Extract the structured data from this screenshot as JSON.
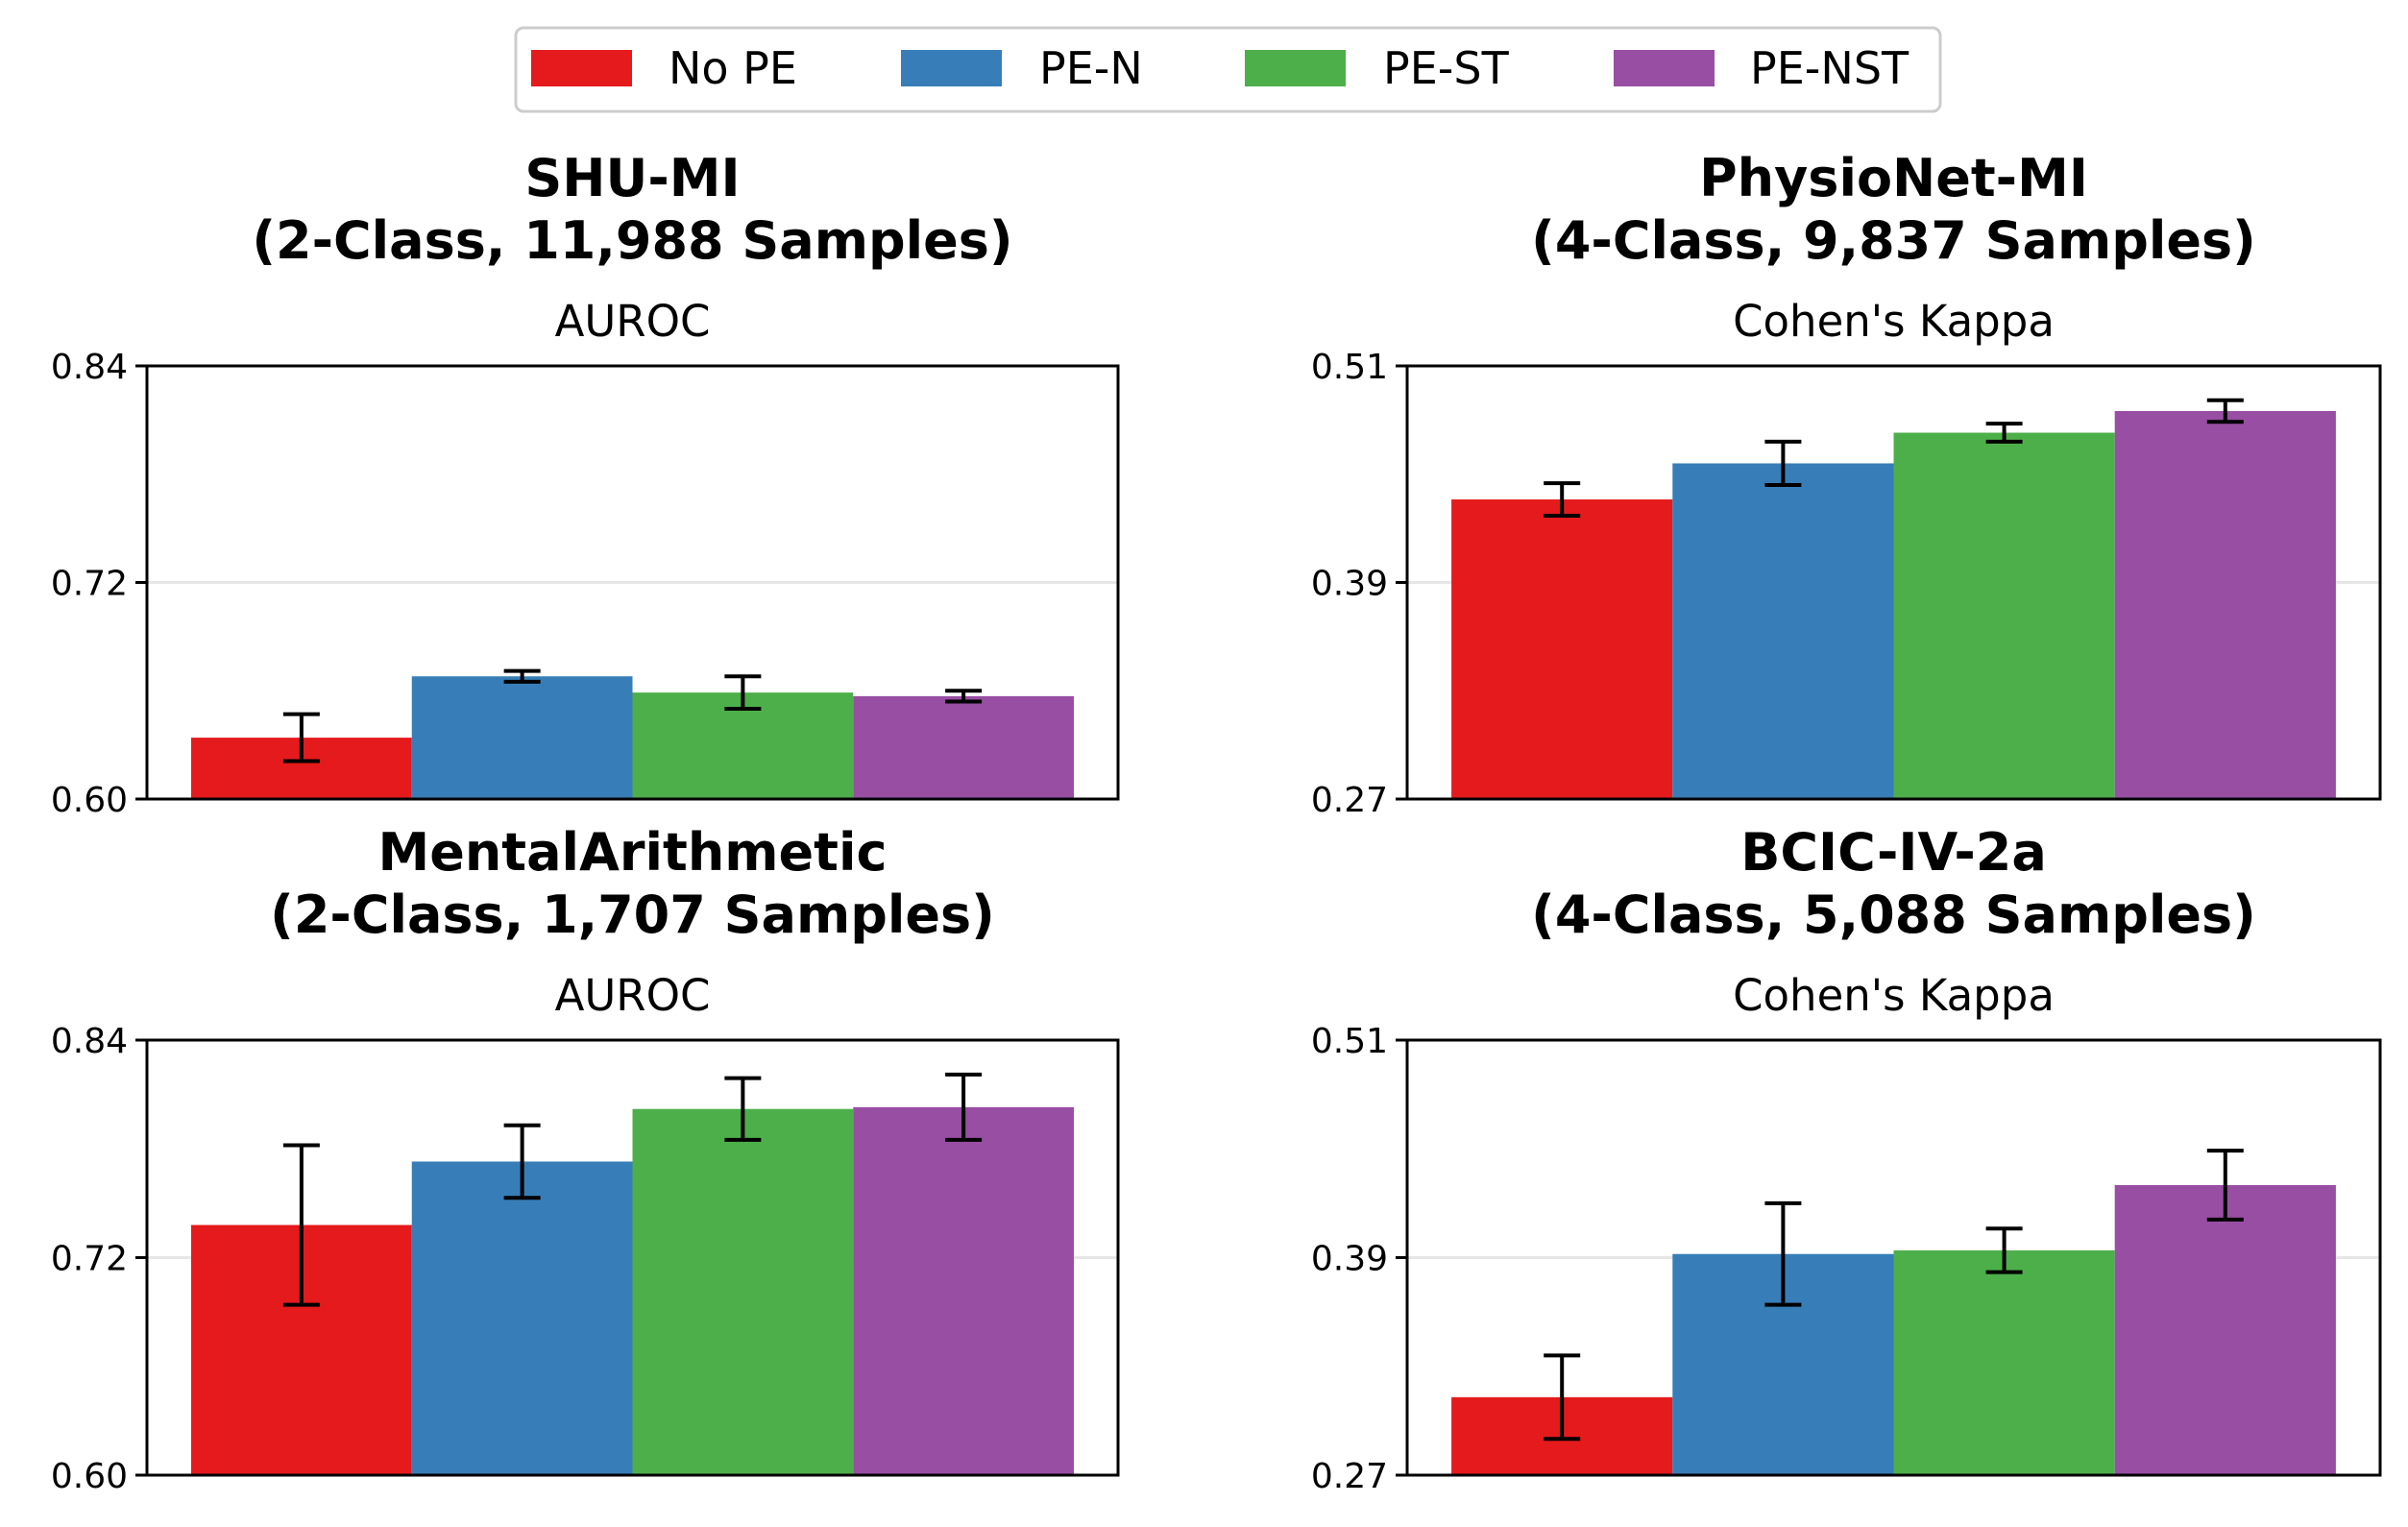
{
  "legend": [
    {
      "label": "No PE",
      "color": "#e41a1c"
    },
    {
      "label": "PE-N",
      "color": "#377eb8"
    },
    {
      "label": "PE-ST",
      "color": "#4daf4a"
    },
    {
      "label": "PE-NST",
      "color": "#984ea3"
    }
  ],
  "chart_data": [
    {
      "type": "bar",
      "title": "SHU-MI",
      "subtitle": "(2-Class, 11,988 Samples)",
      "ylabel": "AUROC",
      "ylim": [
        0.6,
        0.84
      ],
      "yticks": [
        "0.84",
        "0.72",
        "0.60"
      ],
      "ytick_values": [
        0.84,
        0.72,
        0.6
      ],
      "grid": true,
      "series": [
        {
          "name": "No PE",
          "value": 0.634,
          "error": 0.013
        },
        {
          "name": "PE-N",
          "value": 0.668,
          "error": 0.003
        },
        {
          "name": "PE-ST",
          "value": 0.659,
          "error": 0.009
        },
        {
          "name": "PE-NST",
          "value": 0.657,
          "error": 0.003
        }
      ]
    },
    {
      "type": "bar",
      "title": "PhysioNet-MI",
      "subtitle": "(4-Class, 9,837 Samples)",
      "ylabel": "Cohen's Kappa",
      "ylim": [
        0.27,
        0.51
      ],
      "yticks": [
        "0.51",
        "0.39",
        "0.27"
      ],
      "ytick_values": [
        0.51,
        0.39,
        0.27
      ],
      "grid": true,
      "series": [
        {
          "name": "No PE",
          "value": 0.436,
          "error": 0.009
        },
        {
          "name": "PE-N",
          "value": 0.456,
          "error": 0.012
        },
        {
          "name": "PE-ST",
          "value": 0.473,
          "error": 0.005
        },
        {
          "name": "PE-NST",
          "value": 0.485,
          "error": 0.006
        }
      ]
    },
    {
      "type": "bar",
      "title": "MentalArithmetic",
      "subtitle": "(2-Class, 1,707 Samples)",
      "ylabel": "AUROC",
      "ylim": [
        0.6,
        0.84
      ],
      "yticks": [
        "0.84",
        "0.72",
        "0.60"
      ],
      "ytick_values": [
        0.84,
        0.72,
        0.6
      ],
      "grid": true,
      "series": [
        {
          "name": "No PE",
          "value": 0.738,
          "error": 0.044
        },
        {
          "name": "PE-N",
          "value": 0.773,
          "error": 0.02
        },
        {
          "name": "PE-ST",
          "value": 0.802,
          "error": 0.017
        },
        {
          "name": "PE-NST",
          "value": 0.803,
          "error": 0.018
        }
      ]
    },
    {
      "type": "bar",
      "title": "BCIC-IV-2a",
      "subtitle": "(4-Class, 5,088 Samples)",
      "ylabel": "Cohen's Kappa",
      "ylim": [
        0.27,
        0.51
      ],
      "yticks": [
        "0.51",
        "0.39",
        "0.27"
      ],
      "ytick_values": [
        0.51,
        0.39,
        0.27
      ],
      "grid": true,
      "series": [
        {
          "name": "No PE",
          "value": 0.313,
          "error": 0.023
        },
        {
          "name": "PE-N",
          "value": 0.392,
          "error": 0.028
        },
        {
          "name": "PE-ST",
          "value": 0.394,
          "error": 0.012
        },
        {
          "name": "PE-NST",
          "value": 0.43,
          "error": 0.019
        }
      ]
    }
  ]
}
